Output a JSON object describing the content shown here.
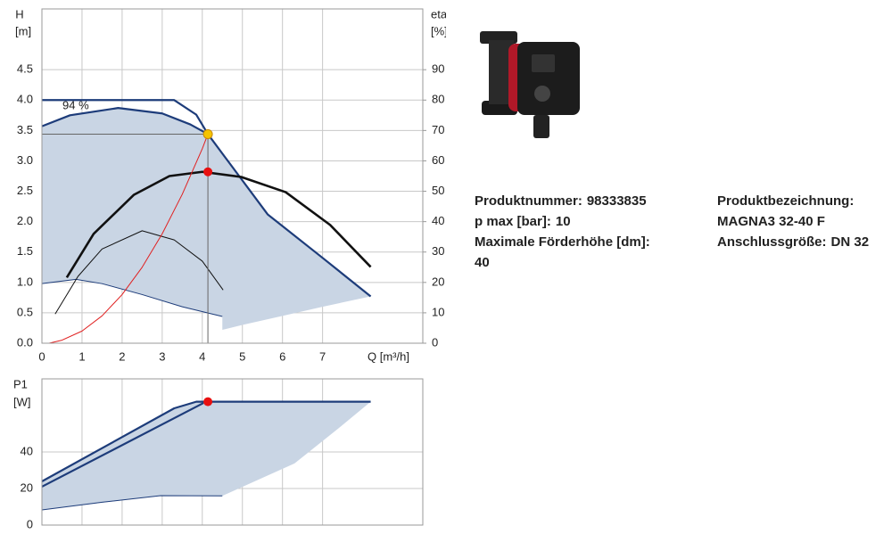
{
  "chart_data": [
    {
      "type": "line",
      "y_label": "H",
      "y_unit": "[m]",
      "y2_label": "eta",
      "y2_unit": "[%]",
      "x_label": "Q [m³/h]",
      "annotation": "94 %",
      "xlim": [
        0,
        9.5
      ],
      "xticks": [
        0,
        1,
        2,
        3,
        4,
        5,
        6,
        7
      ],
      "ylim": [
        0,
        5.5
      ],
      "yticks": [
        {
          "value": 0,
          "label": "0.0"
        },
        0.5,
        {
          "value": 1,
          "label": "1.0"
        },
        1.5,
        {
          "value": 2,
          "label": "2.0"
        },
        2.5,
        {
          "value": 3,
          "label": "3.0"
        },
        3.5,
        {
          "value": 4,
          "label": "4.0"
        },
        4.5
      ],
      "y2lim": [
        0,
        110
      ],
      "y2ticks": [
        0,
        10,
        20,
        30,
        40,
        50,
        60,
        70,
        80,
        90
      ],
      "grid": true,
      "series": [
        {
          "style": "area",
          "color": "#c9d5e4",
          "x": [
            0,
            0.7,
            1.9,
            3,
            3.7,
            4.14,
            5.63,
            6.97,
            8.2,
            7,
            6,
            5,
            4.5,
            4.5,
            3.5,
            2.5,
            1.5,
            0.85,
            0
          ],
          "values": [
            3.57,
            3.75,
            3.87,
            3.78,
            3.6,
            3.44,
            2.12,
            1.42,
            0.77,
            0.6,
            0.45,
            0.3,
            0.22,
            0.44,
            0.6,
            0.8,
            0.98,
            1.05,
            0.98
          ]
        },
        {
          "style": "line",
          "color": "#1d3c7a",
          "width": 2.2,
          "x": [
            0,
            3.3,
            3.85,
            4.14,
            5.63,
            6.97,
            8.2
          ],
          "values": [
            4,
            4,
            3.76,
            3.44,
            2.12,
            1.42,
            0.77
          ]
        },
        {
          "style": "line",
          "color": "#1d3c7a",
          "width": 2.2,
          "x": [
            0,
            0.7,
            1.9,
            3,
            3.7,
            4.14
          ],
          "values": [
            3.57,
            3.75,
            3.87,
            3.78,
            3.6,
            3.44
          ]
        },
        {
          "style": "line",
          "color": "#1d3c7a",
          "width": 1,
          "x": [
            0,
            0.85,
            1.5,
            2.5,
            3.5,
            4.5
          ],
          "values": [
            0.98,
            1.05,
            0.98,
            0.8,
            0.6,
            0.44
          ]
        },
        {
          "style": "line",
          "color": "#111111",
          "width": 2.6,
          "axis": "y2",
          "x": [
            0.62,
            1.29,
            2.29,
            3.18,
            4,
            4.97,
            6.08,
            7.19,
            8.2
          ],
          "values": [
            21.6,
            36,
            48.8,
            55,
            56.4,
            54.7,
            49.7,
            38.9,
            25.1
          ]
        },
        {
          "style": "line",
          "color": "#111111",
          "width": 1,
          "axis": "y2",
          "x": [
            0.33,
            0.9,
            1.5,
            2.5,
            3.3,
            4,
            4.52
          ],
          "values": [
            9.6,
            22,
            31,
            37,
            34,
            27,
            17.5
          ]
        },
        {
          "style": "line",
          "color": "#e02020",
          "width": 1,
          "x": [
            0.18,
            0.5,
            1,
            1.5,
            2,
            2.5,
            3,
            3.5,
            4,
            4.14
          ],
          "values": [
            0,
            0.05,
            0.2,
            0.45,
            0.8,
            1.25,
            1.8,
            2.45,
            3.2,
            3.44
          ]
        },
        {
          "style": "point",
          "color": "#f5c400",
          "guide": true,
          "x": [
            4.14
          ],
          "values": [
            3.44
          ]
        },
        {
          "style": "point",
          "color": "#e81010",
          "axis": "y2",
          "x": [
            4.14
          ],
          "values": [
            56.4
          ]
        }
      ]
    },
    {
      "type": "line",
      "y_label": "P1",
      "y_unit": "[W]",
      "xlim": [
        0,
        9.5
      ],
      "ylim": [
        0,
        80
      ],
      "yticks": [
        0,
        20,
        40
      ],
      "grid": true,
      "series": [
        {
          "style": "area",
          "color": "#c9d5e4",
          "x": [
            0,
            3.3,
            3.85,
            8.2,
            7.4,
            6.3,
            4.5,
            2.96,
            0
          ],
          "values": [
            23.9,
            63.9,
            67.5,
            67.5,
            53,
            33.7,
            16,
            16.1,
            8.3
          ]
        },
        {
          "style": "line",
          "color": "#1d3c7a",
          "width": 2.2,
          "x": [
            0,
            3.3,
            3.85,
            8.2
          ],
          "values": [
            23.9,
            63.9,
            67.5,
            67.5
          ]
        },
        {
          "style": "line",
          "color": "#1d3c7a",
          "width": 2.2,
          "x": [
            0,
            4.03
          ],
          "values": [
            21,
            66.8
          ]
        },
        {
          "style": "line",
          "color": "#1d3c7a",
          "width": 1,
          "x": [
            0,
            1.5,
            2.96,
            4.5
          ],
          "values": [
            8.3,
            12.5,
            16.1,
            16
          ]
        },
        {
          "style": "point",
          "color": "#e81010",
          "x": [
            4.14
          ],
          "values": [
            67.5
          ]
        }
      ]
    }
  ],
  "product": {
    "col1": [
      {
        "label": "Produktnummer:",
        "value": 98333835
      },
      {
        "label": "p max [bar]:",
        "value": 10
      },
      {
        "label": "Maximale Förderhöhe [dm]:",
        "value": 40
      }
    ],
    "col2": [
      {
        "label": "Produktbezeichnung:",
        "value": "MAGNA3 32-40 F"
      },
      {
        "label": "Anschlussgröße:",
        "value": "DN 32"
      }
    ]
  }
}
